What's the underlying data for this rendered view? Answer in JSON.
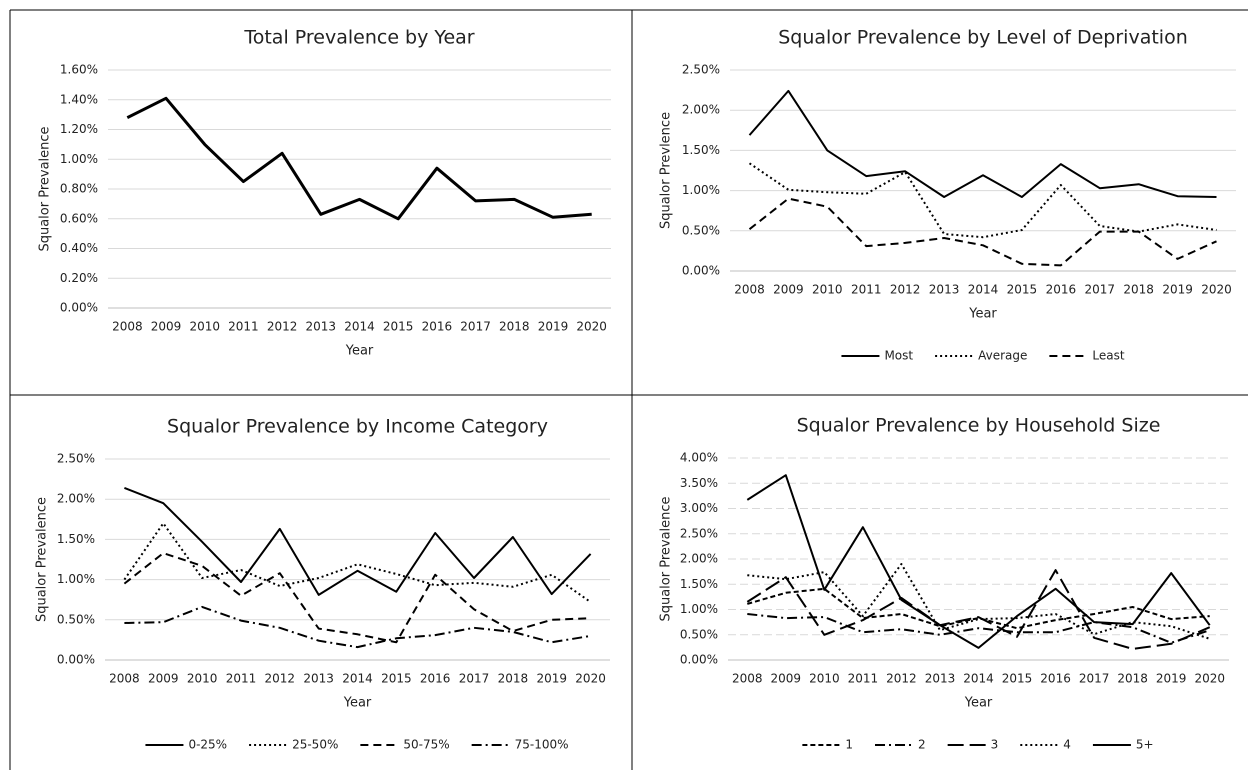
{
  "chart_data": [
    {
      "type": "line",
      "title": "Total Prevalence by Year",
      "x_label": "Year",
      "y_label": "Squalor Prevalence",
      "categories": [
        "2008",
        "2009",
        "2010",
        "2011",
        "2012",
        "2013",
        "2014",
        "2015",
        "2016",
        "2017",
        "2018",
        "2019",
        "2020"
      ],
      "series": [
        {
          "name": null,
          "color": "#000000",
          "dash": "solid",
          "values": [
            1.28,
            1.41,
            1.1,
            0.85,
            1.04,
            0.63,
            0.73,
            0.6,
            0.94,
            0.72,
            0.73,
            0.61,
            0.63
          ]
        }
      ],
      "ylim": [
        0,
        1.6
      ],
      "yticks": [
        {
          "value": 0,
          "label": "0.00%"
        },
        {
          "value": 0.2,
          "label": "0.20%"
        },
        {
          "value": 0.4,
          "label": "0.40%"
        },
        {
          "value": 0.6,
          "label": "0.60%"
        },
        {
          "value": 0.8,
          "label": "0.80%"
        },
        {
          "value": 1.0,
          "label": "1.00%"
        },
        {
          "value": 1.2,
          "label": "1.20%"
        },
        {
          "value": 1.4,
          "label": "1.40%"
        },
        {
          "value": 1.6,
          "label": "1.60%"
        }
      ],
      "grid": "solid",
      "legend": "none"
    },
    {
      "type": "line",
      "title": "Squalor Prevalence by Level of Deprivation",
      "x_label": "Year",
      "y_label": "Squalor Prevlence",
      "categories": [
        "2008",
        "2009",
        "2010",
        "2011",
        "2012",
        "2013",
        "2014",
        "2015",
        "2016",
        "2017",
        "2018",
        "2019",
        "2020"
      ],
      "series": [
        {
          "name": "Most",
          "color": "#000000",
          "dash": "solid",
          "values": [
            1.69,
            2.24,
            1.5,
            1.18,
            1.24,
            0.92,
            1.19,
            0.92,
            1.33,
            1.03,
            1.08,
            0.93,
            0.92
          ]
        },
        {
          "name": "Average",
          "color": "#000000",
          "dash": "dotted",
          "values": [
            1.34,
            1.01,
            0.98,
            0.96,
            1.23,
            0.46,
            0.42,
            0.51,
            1.07,
            0.56,
            0.49,
            0.58,
            0.51
          ]
        },
        {
          "name": "Least",
          "color": "#000000",
          "dash": "dashed",
          "values": [
            0.52,
            0.9,
            0.8,
            0.31,
            0.35,
            0.41,
            0.32,
            0.09,
            0.07,
            0.49,
            0.49,
            0.15,
            0.37
          ]
        }
      ],
      "ylim": [
        0,
        2.5
      ],
      "yticks": [
        {
          "value": 0,
          "label": "0.00%"
        },
        {
          "value": 0.5,
          "label": "0.50%"
        },
        {
          "value": 1.0,
          "label": "1.00%"
        },
        {
          "value": 1.5,
          "label": "1.50%"
        },
        {
          "value": 2.0,
          "label": "2.00%"
        },
        {
          "value": 2.5,
          "label": "2.50%"
        }
      ],
      "grid": "solid",
      "legend": "bottom"
    },
    {
      "type": "line",
      "title": "Squalor Prevalence by Income Category",
      "x_label": "Year",
      "y_label": "Squalor Prevalence",
      "categories": [
        "2008",
        "2009",
        "2010",
        "2011",
        "2012",
        "2013",
        "2014",
        "2015",
        "2016",
        "2017",
        "2018",
        "2019",
        "2020"
      ],
      "series": [
        {
          "name": "0-25%",
          "color": "#000000",
          "dash": "solid",
          "values": [
            2.14,
            1.95,
            1.47,
            0.97,
            1.63,
            0.81,
            1.11,
            0.85,
            1.58,
            1.02,
            1.53,
            0.82,
            1.32
          ]
        },
        {
          "name": "25-50%",
          "color": "#000000",
          "dash": "dotted",
          "values": [
            1.0,
            1.7,
            1.02,
            1.12,
            0.92,
            1.02,
            1.19,
            1.07,
            0.93,
            0.96,
            0.91,
            1.06,
            0.72
          ]
        },
        {
          "name": "50-75%",
          "color": "#000000",
          "dash": "dashed",
          "values": [
            0.95,
            1.33,
            1.17,
            0.8,
            1.08,
            0.39,
            0.32,
            0.22,
            1.06,
            0.63,
            0.36,
            0.5,
            0.52
          ]
        },
        {
          "name": "75-100%",
          "color": "#000000",
          "dash": "dash-dot",
          "values": [
            0.46,
            0.47,
            0.66,
            0.49,
            0.4,
            0.24,
            0.16,
            0.27,
            0.31,
            0.4,
            0.35,
            0.22,
            0.3
          ]
        }
      ],
      "ylim": [
        0,
        2.5
      ],
      "yticks": [
        {
          "value": 0,
          "label": "0.00%"
        },
        {
          "value": 0.5,
          "label": "0.50%"
        },
        {
          "value": 1.0,
          "label": "1.00%"
        },
        {
          "value": 1.5,
          "label": "1.50%"
        },
        {
          "value": 2.0,
          "label": "2.00%"
        },
        {
          "value": 2.5,
          "label": "2.50%"
        }
      ],
      "grid": "solid",
      "legend": "bottom"
    },
    {
      "type": "line",
      "title": "Squalor Prevalence by Household Size",
      "x_label": "Year",
      "y_label": "Squalor Prevalence",
      "categories": [
        "2008",
        "2009",
        "2010",
        "2011",
        "2012",
        "2013",
        "2014",
        "2015",
        "2016",
        "2017",
        "2018",
        "2019",
        "2020"
      ],
      "series": [
        {
          "name": "1",
          "color": "#000000",
          "dash": "short-dash",
          "values": [
            1.11,
            1.33,
            1.41,
            0.83,
            0.91,
            0.67,
            0.83,
            0.63,
            0.79,
            0.91,
            1.05,
            0.81,
            0.87
          ]
        },
        {
          "name": "2",
          "color": "#000000",
          "dash": "dash-dot",
          "values": [
            0.91,
            0.83,
            0.85,
            0.55,
            0.61,
            0.5,
            0.63,
            0.55,
            0.55,
            0.75,
            0.65,
            0.34,
            0.59
          ]
        },
        {
          "name": "3",
          "color": "#000000",
          "dash": "long-dash",
          "values": [
            1.15,
            1.64,
            0.5,
            0.79,
            1.23,
            0.69,
            0.85,
            0.46,
            1.78,
            0.44,
            0.22,
            0.32,
            0.65
          ]
        },
        {
          "name": "4",
          "color": "#000000",
          "dash": "dotted",
          "values": [
            1.68,
            1.6,
            1.74,
            0.87,
            1.9,
            0.59,
            0.81,
            0.83,
            0.91,
            0.51,
            0.75,
            0.67,
            0.42
          ]
        },
        {
          "name": "5+",
          "color": "#000000",
          "dash": "solid",
          "values": [
            3.17,
            3.66,
            1.39,
            2.63,
            1.19,
            0.69,
            0.24,
            0.87,
            1.41,
            0.75,
            0.71,
            1.72,
            0.69
          ]
        }
      ],
      "ylim": [
        0,
        4.0
      ],
      "yticks": [
        {
          "value": 0,
          "label": "0.00%"
        },
        {
          "value": 0.5,
          "label": "0.50%"
        },
        {
          "value": 1.0,
          "label": "1.00%"
        },
        {
          "value": 1.5,
          "label": "1.50%"
        },
        {
          "value": 2.0,
          "label": "2.00%"
        },
        {
          "value": 2.5,
          "label": "2.50%"
        },
        {
          "value": 3.0,
          "label": "3.00%"
        },
        {
          "value": 3.5,
          "label": "3.50%"
        },
        {
          "value": 4.0,
          "label": "4.00%"
        }
      ],
      "grid": "dashed",
      "legend": "bottom"
    }
  ]
}
